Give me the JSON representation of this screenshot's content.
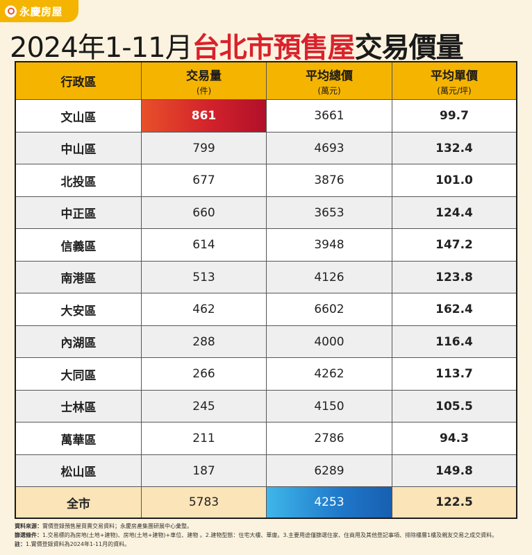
{
  "brand": {
    "name": "永慶房屋"
  },
  "title": {
    "part1": "2024年1-11月",
    "part2": "台北市預售屋",
    "part3": "交易價量"
  },
  "colors": {
    "header": "#f5b400",
    "title_red": "#d9222c",
    "highlight_red": "#d2222b",
    "highlight_blue": "#1f77c9",
    "total_row": "#fbe4b8"
  },
  "chart_data": {
    "type": "table",
    "title": "2024年1-11月台北市預售屋交易價量",
    "columns": [
      {
        "label": "行政區",
        "unit": ""
      },
      {
        "label": "交易量",
        "unit": "(件)"
      },
      {
        "label": "平均總價",
        "unit": "(萬元)"
      },
      {
        "label": "平均單價",
        "unit": "(萬元/坪)"
      }
    ],
    "rows": [
      {
        "district": "文山區",
        "volume": "861",
        "avg_total": "3661",
        "avg_unit": "99.7"
      },
      {
        "district": "中山區",
        "volume": "799",
        "avg_total": "4693",
        "avg_unit": "132.4"
      },
      {
        "district": "北投區",
        "volume": "677",
        "avg_total": "3876",
        "avg_unit": "101.0"
      },
      {
        "district": "中正區",
        "volume": "660",
        "avg_total": "3653",
        "avg_unit": "124.4"
      },
      {
        "district": "信義區",
        "volume": "614",
        "avg_total": "3948",
        "avg_unit": "147.2"
      },
      {
        "district": "南港區",
        "volume": "513",
        "avg_total": "4126",
        "avg_unit": "123.8"
      },
      {
        "district": "大安區",
        "volume": "462",
        "avg_total": "6602",
        "avg_unit": "162.4"
      },
      {
        "district": "內湖區",
        "volume": "288",
        "avg_total": "4000",
        "avg_unit": "116.4"
      },
      {
        "district": "大同區",
        "volume": "266",
        "avg_total": "4262",
        "avg_unit": "113.7"
      },
      {
        "district": "士林區",
        "volume": "245",
        "avg_total": "4150",
        "avg_unit": "105.5"
      },
      {
        "district": "萬華區",
        "volume": "211",
        "avg_total": "2786",
        "avg_unit": "94.3"
      },
      {
        "district": "松山區",
        "volume": "187",
        "avg_total": "6289",
        "avg_unit": "149.8"
      }
    ],
    "total": {
      "district": "全市",
      "volume": "5783",
      "avg_total": "4253",
      "avg_unit": "122.5"
    },
    "highlights": {
      "max_volume_row": "文山區",
      "citywide_avg_total": "全市"
    }
  },
  "notes": [
    {
      "label": "資料來源：",
      "text": "實價登錄預售屋買賣交易資料；永慶房產集團研展中心彙整。"
    },
    {
      "label": "篩選條件：",
      "text": "1.交易標的為房地(土地+建物)、房地(土地+建物)+車位、建物 。2.建物型態：住宅大樓、華廈。3.主要用途僅篩選住家、住商用及其他登記事項、排除樓層1樓及親友交易之成交資料。"
    },
    {
      "label": "註：",
      "text": "1.實價登錄資料為2024年1-11月的資料。"
    }
  ]
}
